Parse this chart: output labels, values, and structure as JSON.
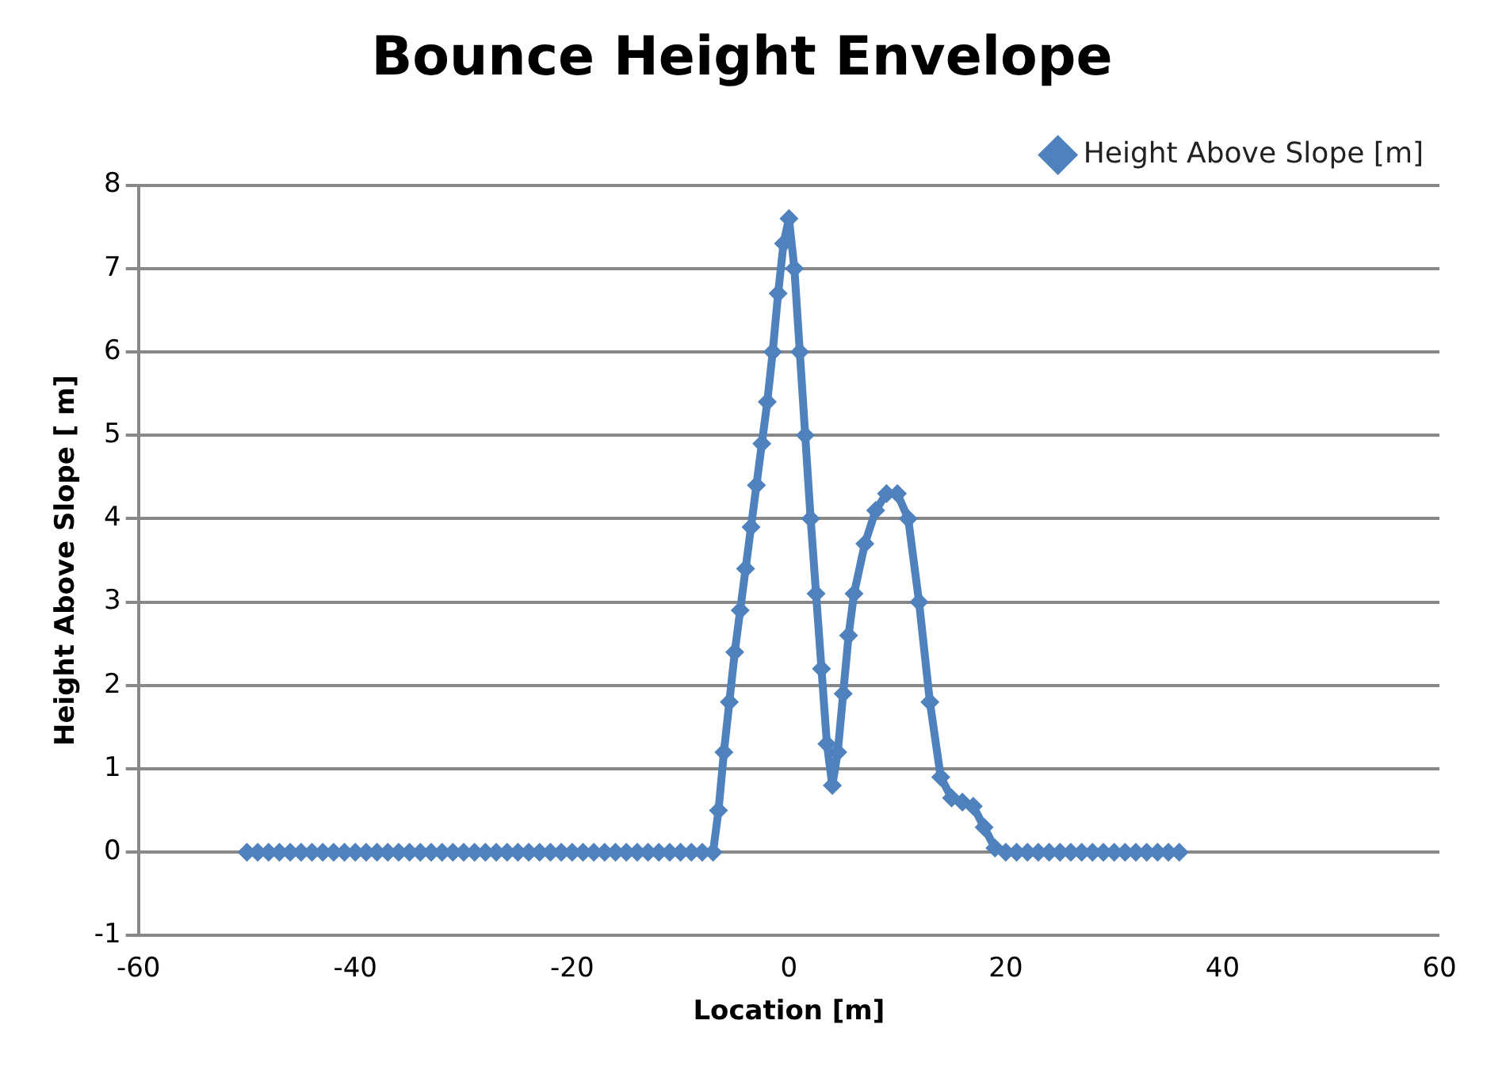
{
  "chart_data": {
    "type": "line",
    "title": "Bounce Height Envelope",
    "xlabel": "Location [m]",
    "ylabel": "Height Above Slope [ m]",
    "series": [
      {
        "name": "Height Above Slope [m]",
        "color": "#4f81bd",
        "x": [
          -50,
          -49,
          -48,
          -47,
          -46,
          -45,
          -44,
          -43,
          -42,
          -41,
          -40,
          -39,
          -38,
          -37,
          -36,
          -35,
          -34,
          -33,
          -32,
          -31,
          -30,
          -29,
          -28,
          -27,
          -26,
          -25,
          -24,
          -23,
          -22,
          -21,
          -20,
          -19,
          -18,
          -17,
          -16,
          -15,
          -14,
          -13,
          -12,
          -11,
          -10,
          -9,
          -8,
          -7,
          -6.5,
          -6,
          -5.5,
          -5,
          -4.5,
          -4,
          -3.5,
          -3,
          -2.5,
          -2,
          -1.5,
          -1,
          -0.5,
          0,
          0.5,
          1,
          1.5,
          2,
          2.5,
          3,
          3.5,
          4,
          4.5,
          5,
          5.5,
          6,
          7,
          8,
          9,
          10,
          11,
          12,
          13,
          14,
          15,
          16,
          17,
          18,
          19,
          20,
          21,
          22,
          23,
          24,
          25,
          26,
          27,
          28,
          29,
          30,
          31,
          32,
          33,
          34,
          35,
          36
        ],
        "values": [
          0,
          0,
          0,
          0,
          0,
          0,
          0,
          0,
          0,
          0,
          0,
          0,
          0,
          0,
          0,
          0,
          0,
          0,
          0,
          0,
          0,
          0,
          0,
          0,
          0,
          0,
          0,
          0,
          0,
          0,
          0,
          0,
          0,
          0,
          0,
          0,
          0,
          0,
          0,
          0,
          0,
          0,
          0,
          0,
          0.5,
          1.2,
          1.8,
          2.4,
          2.9,
          3.4,
          3.9,
          4.4,
          4.9,
          5.4,
          6.0,
          6.7,
          7.3,
          7.6,
          7.0,
          6.0,
          5.0,
          4.0,
          3.1,
          2.2,
          1.3,
          0.8,
          1.2,
          1.9,
          2.6,
          3.1,
          3.7,
          4.1,
          4.3,
          4.3,
          4.0,
          3.0,
          1.8,
          0.9,
          0.65,
          0.6,
          0.55,
          0.3,
          0.05,
          0,
          0,
          0,
          0,
          0,
          0,
          0,
          0,
          0,
          0,
          0,
          0,
          0,
          0,
          0,
          0,
          0
        ]
      }
    ],
    "xlim": [
      -60,
      60
    ],
    "xticks": [
      -60,
      -40,
      -20,
      0,
      20,
      40,
      60
    ],
    "ylim": [
      -1,
      8
    ],
    "yticks": [
      -1,
      0,
      1,
      2,
      3,
      4,
      5,
      6,
      7,
      8
    ],
    "grid": "y",
    "legend": "top right",
    "marker": "diamond",
    "line_style": "solid"
  }
}
